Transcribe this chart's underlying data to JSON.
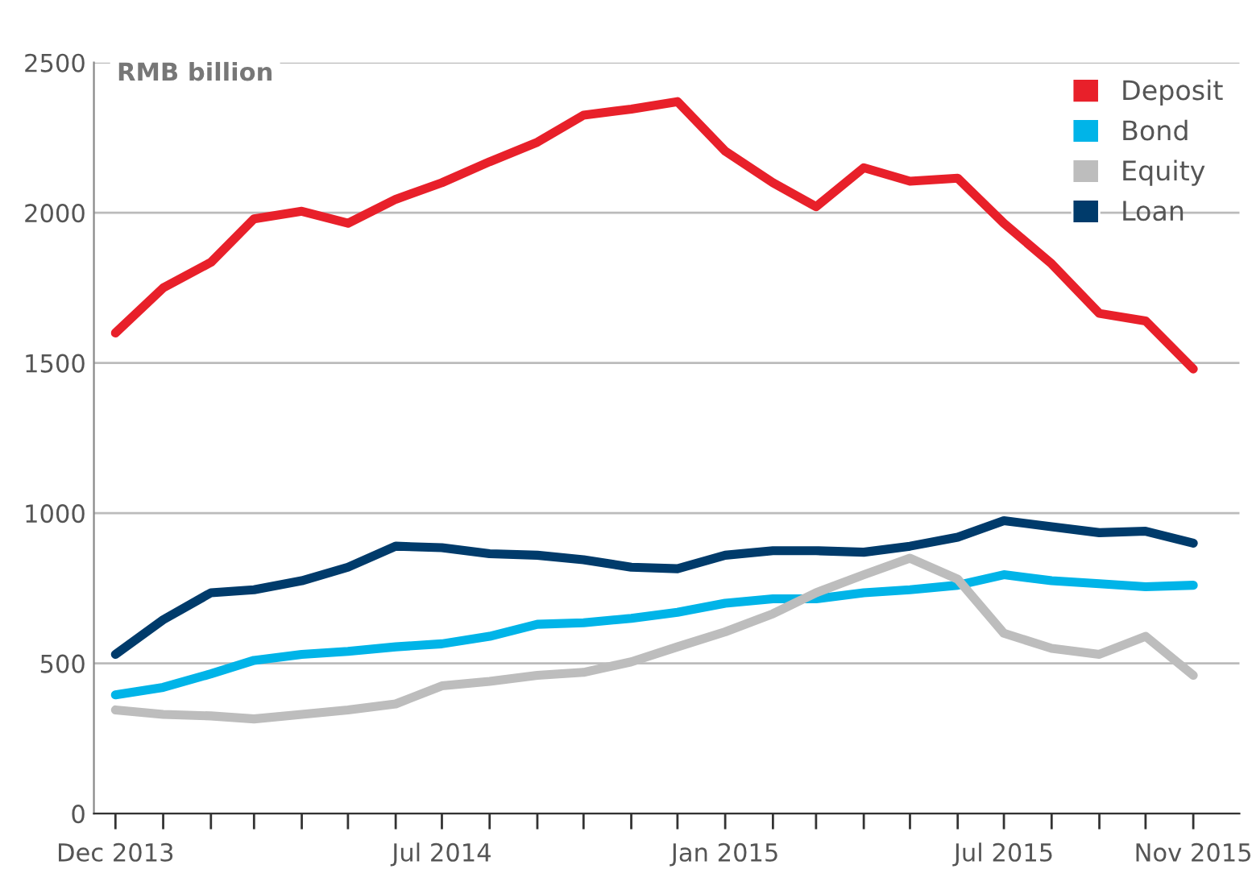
{
  "chart_data": {
    "type": "line",
    "ylabel": "RMB billion",
    "x": [
      "2013-12",
      "2014-01",
      "2014-02",
      "2014-03",
      "2014-04",
      "2014-05",
      "2014-06",
      "2014-07",
      "2014-08",
      "2014-09",
      "2014-10",
      "2014-11",
      "2014-12",
      "2015-01",
      "2015-02",
      "2015-03",
      "2015-04",
      "2015-05",
      "2015-06",
      "2015-07",
      "2015-08",
      "2015-09",
      "2015-10",
      "2015-11"
    ],
    "series": [
      {
        "name": "Deposit",
        "color": "#e8202a",
        "values": [
          1600,
          1750,
          1835,
          1980,
          2005,
          1965,
          2045,
          2100,
          2170,
          2235,
          2325,
          2345,
          2370,
          2205,
          2100,
          2020,
          2150,
          2105,
          2115,
          1965,
          1830,
          1665,
          1640,
          1480
        ]
      },
      {
        "name": "Bond",
        "color": "#00b4e8",
        "values": [
          395,
          420,
          465,
          510,
          530,
          540,
          555,
          565,
          590,
          630,
          635,
          650,
          670,
          700,
          715,
          715,
          735,
          745,
          760,
          795,
          775,
          765,
          755,
          760
        ]
      },
      {
        "name": "Equity",
        "color": "#bdbdbd",
        "values": [
          345,
          330,
          325,
          315,
          330,
          345,
          365,
          425,
          440,
          460,
          470,
          505,
          555,
          605,
          665,
          735,
          795,
          850,
          780,
          600,
          550,
          530,
          590,
          460
        ]
      },
      {
        "name": "Loan",
        "color": "#003b6b",
        "values": [
          530,
          645,
          735,
          745,
          775,
          820,
          890,
          885,
          865,
          860,
          845,
          820,
          815,
          860,
          875,
          875,
          870,
          890,
          920,
          975,
          955,
          935,
          940,
          900
        ]
      }
    ],
    "xlim": [
      "2013-11-17",
      "2015-12-01"
    ],
    "xticks": [
      {
        "value": "2013-12",
        "label": "Dec 2013"
      },
      {
        "value": "2014-01",
        "label": null
      },
      {
        "value": "2014-02",
        "label": null
      },
      {
        "value": "2014-03",
        "label": null
      },
      {
        "value": "2014-04",
        "label": null
      },
      {
        "value": "2014-05",
        "label": null
      },
      {
        "value": "2014-06",
        "label": null
      },
      {
        "value": "2014-07",
        "label": "Jul 2014"
      },
      {
        "value": "2014-08",
        "label": null
      },
      {
        "value": "2014-09",
        "label": null
      },
      {
        "value": "2014-10",
        "label": null
      },
      {
        "value": "2014-11",
        "label": null
      },
      {
        "value": "2014-12",
        "label": null
      },
      {
        "value": "2015-01",
        "label": "Jan 2015"
      },
      {
        "value": "2015-02",
        "label": null
      },
      {
        "value": "2015-03",
        "label": null
      },
      {
        "value": "2015-04",
        "label": null
      },
      {
        "value": "2015-05",
        "label": null
      },
      {
        "value": "2015-06",
        "label": null
      },
      {
        "value": "2015-07",
        "label": "Jul 2015"
      },
      {
        "value": "2015-08",
        "label": null
      },
      {
        "value": "2015-09",
        "label": null
      },
      {
        "value": "2015-10",
        "label": null
      },
      {
        "value": "2015-11",
        "label": "Nov 2015"
      }
    ],
    "ylim": [
      0,
      2500
    ],
    "yticks": [
      0,
      500,
      1000,
      1500,
      2000,
      2500
    ],
    "grid": "y",
    "legend": "top right",
    "marker": "none",
    "line_style": "solid"
  }
}
